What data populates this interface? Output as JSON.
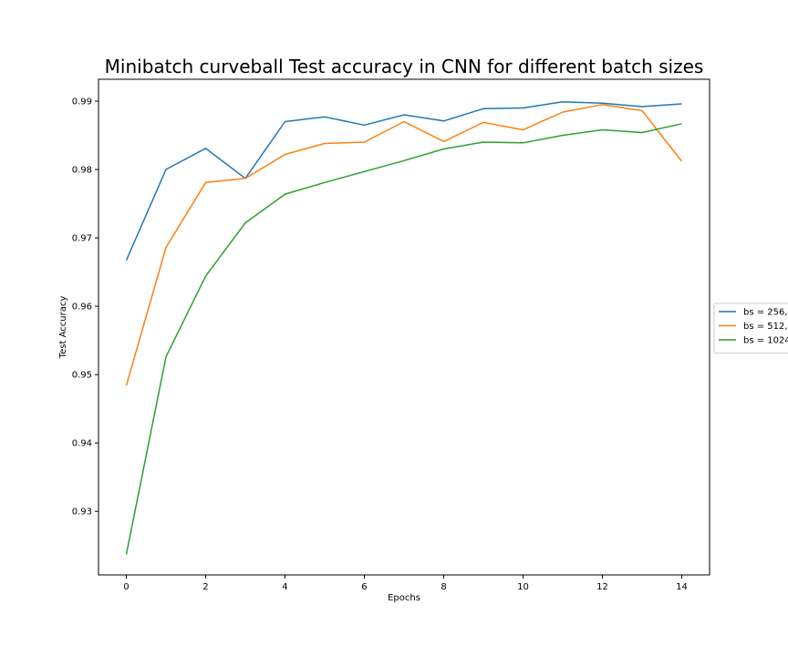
{
  "chart_data": {
    "type": "line",
    "title": "Minibatch curveball Test accuracy in CNN for different batch sizes",
    "xlabel": "Epochs",
    "ylabel": "Test Accuracy",
    "xlim": [
      -0.7,
      14.7
    ],
    "ylim": [
      0.9207,
      0.9932
    ],
    "xticks": [
      0,
      2,
      4,
      6,
      8,
      10,
      12,
      14
    ],
    "yticks": [
      0.93,
      0.94,
      0.95,
      0.96,
      0.97,
      0.98,
      0.99
    ],
    "grid": false,
    "legend_position": "right, outside plot (clipped)",
    "x": [
      0,
      1,
      2,
      3,
      4,
      5,
      6,
      7,
      8,
      9,
      10,
      11,
      12,
      13,
      14
    ],
    "series": [
      {
        "name": "bs = 256,",
        "color": "#1f77b4",
        "values": [
          0.9667,
          0.98,
          0.9831,
          0.9787,
          0.987,
          0.9877,
          0.9865,
          0.988,
          0.9871,
          0.9889,
          0.989,
          0.9899,
          0.9897,
          0.9892,
          0.9896
        ]
      },
      {
        "name": "bs = 512,",
        "color": "#ff7f0e",
        "values": [
          0.9484,
          0.9686,
          0.9781,
          0.9787,
          0.9822,
          0.9838,
          0.984,
          0.987,
          0.9841,
          0.9869,
          0.9858,
          0.9884,
          0.9895,
          0.9886,
          0.9812
        ]
      },
      {
        "name": "bs = 1024",
        "color": "#2ca02c",
        "values": [
          0.9237,
          0.9526,
          0.9644,
          0.9722,
          0.9764,
          0.9781,
          0.9797,
          0.9813,
          0.983,
          0.984,
          0.9839,
          0.985,
          0.9858,
          0.9854,
          0.9867
        ]
      }
    ]
  }
}
